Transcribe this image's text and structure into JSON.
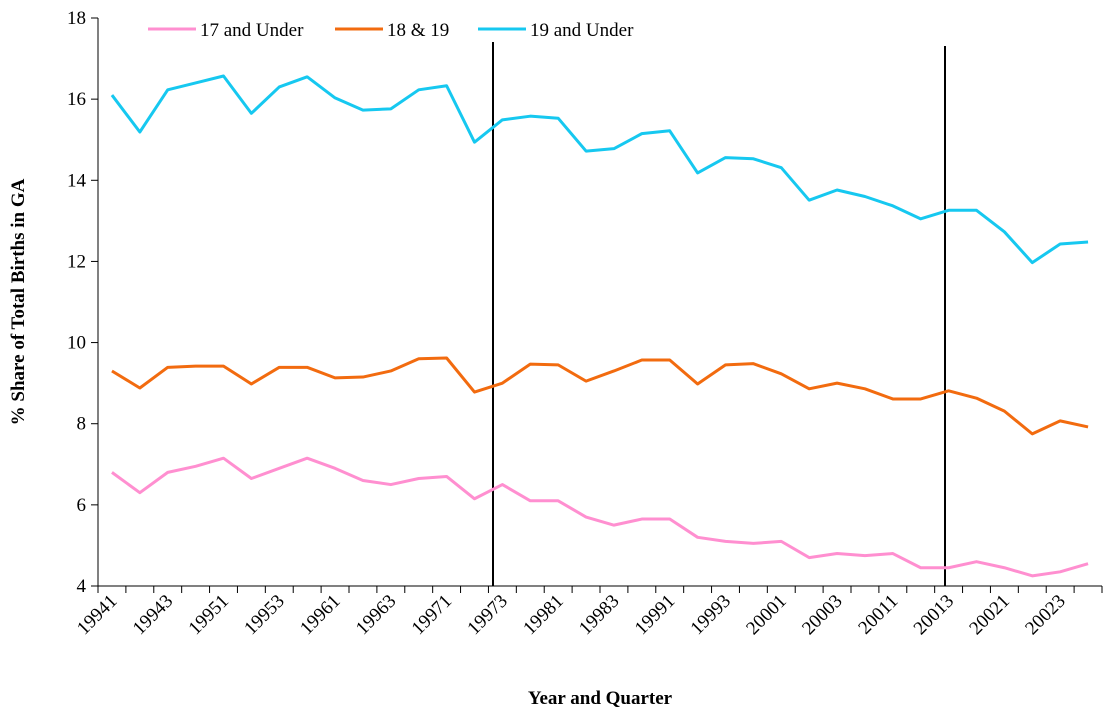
{
  "chart_data": {
    "type": "line",
    "y_label": "% Share of Total Births in GA",
    "x_label": "Year and Quarter",
    "categories": [
      "19941",
      null,
      "19943",
      null,
      "19951",
      null,
      "19953",
      null,
      "19961",
      null,
      "19963",
      null,
      "19971",
      null,
      "19973",
      null,
      "19981",
      null,
      "19983",
      null,
      "19991",
      null,
      "19993",
      null,
      "20001",
      null,
      "20003",
      null,
      "20011",
      null,
      "20013",
      null,
      "20021",
      null,
      "20023",
      null
    ],
    "series": [
      {
        "name": "17 and Under",
        "color": "#ff8fd0",
        "values": [
          6.8,
          6.3,
          6.8,
          6.95,
          7.15,
          6.65,
          6.9,
          7.15,
          6.9,
          6.6,
          6.5,
          6.65,
          6.7,
          6.15,
          6.5,
          6.1,
          6.1,
          5.7,
          5.5,
          5.65,
          5.65,
          5.2,
          5.1,
          5.05,
          5.1,
          4.7,
          4.8,
          4.75,
          4.8,
          4.45,
          4.45,
          4.6,
          4.45,
          4.25,
          4.35,
          4.55
        ]
      },
      {
        "name": "18 & 19",
        "color": "#f26b0f",
        "values": [
          9.3,
          8.88,
          9.39,
          9.42,
          9.42,
          8.98,
          9.39,
          9.39,
          9.13,
          9.15,
          9.3,
          9.6,
          9.62,
          8.78,
          9.0,
          9.47,
          9.45,
          9.05,
          9.3,
          9.57,
          9.57,
          8.98,
          9.45,
          9.48,
          9.23,
          8.86,
          9.0,
          8.86,
          8.61,
          8.61,
          8.81,
          8.63,
          8.31,
          7.75,
          8.07,
          7.92
        ]
      },
      {
        "name": "19 and Under",
        "color": "#16c8f0",
        "values": [
          16.1,
          15.19,
          16.23,
          16.4,
          16.57,
          15.65,
          16.3,
          16.55,
          16.03,
          15.73,
          15.76,
          16.23,
          16.33,
          14.94,
          15.49,
          15.58,
          15.53,
          14.72,
          14.78,
          15.15,
          15.22,
          14.18,
          14.56,
          14.53,
          14.31,
          13.51,
          13.76,
          13.6,
          13.37,
          13.05,
          13.26,
          13.26,
          12.73,
          11.97,
          12.43,
          12.48
        ]
      }
    ],
    "ylim": [
      4,
      18
    ],
    "yticks": [
      4,
      6,
      8,
      10,
      12,
      14,
      16,
      18
    ]
  }
}
